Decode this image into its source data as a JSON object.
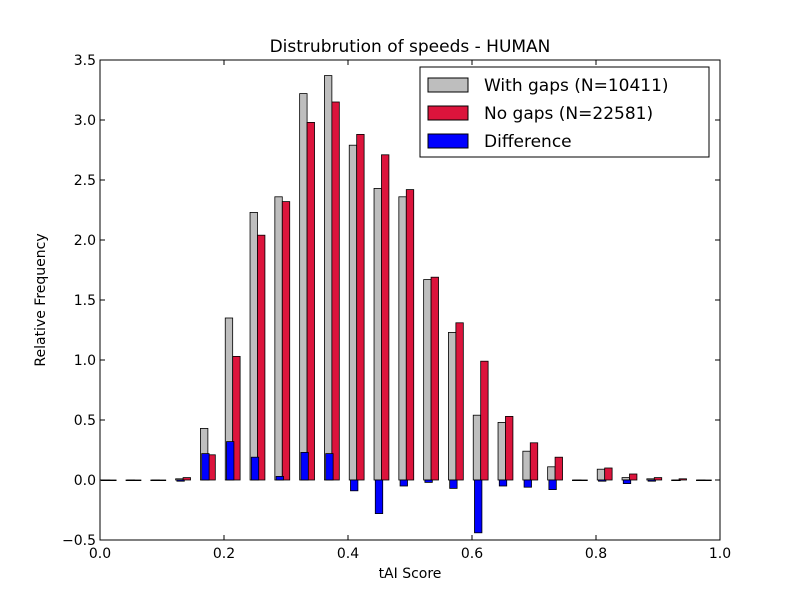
{
  "chart_data": {
    "type": "bar",
    "title": "Distrubrution of speeds - HUMAN",
    "xlabel": "tAI Score",
    "ylabel": "Relative Frequency",
    "xlim": [
      0.0,
      1.0
    ],
    "ylim": [
      -0.5,
      3.5
    ],
    "xticks": [
      "0.0",
      "0.2",
      "0.4",
      "0.6",
      "0.8",
      "1.0"
    ],
    "yticks": [
      "−0.5",
      "0.0",
      "0.5",
      "1.0",
      "1.5",
      "2.0",
      "2.5",
      "3.0",
      "3.5"
    ],
    "grid": false,
    "legend_position": "top-right",
    "bin_starts": [
      0.0,
      0.04,
      0.08,
      0.12,
      0.16,
      0.2,
      0.24,
      0.28,
      0.32,
      0.36,
      0.4,
      0.44,
      0.48,
      0.52,
      0.56,
      0.6,
      0.64,
      0.68,
      0.72,
      0.76,
      0.8,
      0.84,
      0.88,
      0.92,
      0.96
    ],
    "series": [
      {
        "name": "With gaps (N=10411)",
        "color": "#bebebe",
        "values": [
          0.0,
          0.0,
          0.0,
          0.01,
          0.43,
          1.35,
          2.23,
          2.36,
          3.22,
          3.37,
          2.79,
          2.43,
          2.36,
          1.67,
          1.23,
          0.54,
          0.48,
          0.24,
          0.11,
          0.0,
          0.09,
          0.02,
          0.01,
          0.0,
          0.0
        ]
      },
      {
        "name": "No gaps (N=22581)",
        "color": "#dc143c",
        "values": [
          0.0,
          0.0,
          0.0,
          0.02,
          0.21,
          1.03,
          2.04,
          2.32,
          2.98,
          3.15,
          2.88,
          2.71,
          2.42,
          1.69,
          1.31,
          0.99,
          0.53,
          0.31,
          0.19,
          0.0,
          0.1,
          0.05,
          0.02,
          0.01,
          0.0
        ]
      },
      {
        "name": "Difference",
        "color": "#0000ff",
        "values": [
          0.0,
          0.0,
          0.0,
          -0.01,
          0.22,
          0.32,
          0.19,
          0.03,
          0.23,
          0.22,
          -0.09,
          -0.28,
          -0.05,
          -0.02,
          -0.07,
          -0.44,
          -0.05,
          -0.06,
          -0.08,
          0.0,
          -0.01,
          -0.03,
          -0.01,
          0.0,
          0.0
        ]
      }
    ]
  }
}
